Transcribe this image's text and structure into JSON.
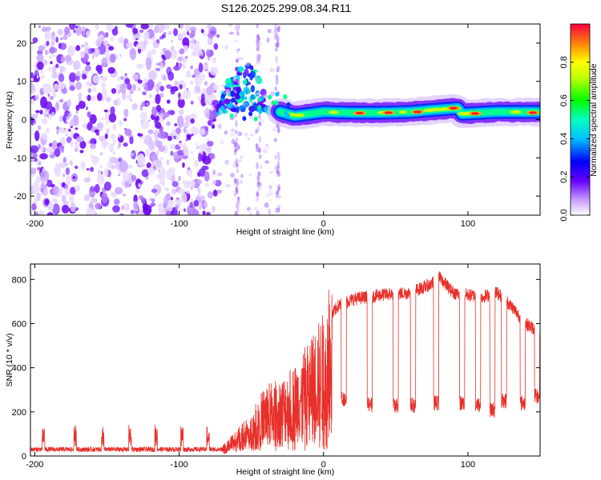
{
  "title": "S126.2025.299.08.34.R11",
  "chart_data": [
    {
      "type": "heatmap",
      "xlabel": "Height of straight line (km)",
      "ylabel": "Frequency (Hz)",
      "xlim": [
        -203,
        150
      ],
      "ylim": [
        -25,
        25
      ],
      "x_ticks": [
        -200,
        -100,
        0,
        100
      ],
      "y_ticks": [
        -20,
        -10,
        0,
        10,
        20
      ],
      "colorbar": {
        "label": "Normalized spectral amplitude",
        "range": [
          0,
          1
        ],
        "ticks": [
          0.0,
          0.2,
          0.4,
          0.6,
          0.8
        ]
      },
      "features": {
        "noise_region_km": [
          -203,
          -73
        ],
        "noise_columns_km": [
          -60,
          -45,
          -32
        ],
        "burst_region_km": [
          -73,
          -30
        ],
        "burst_freq_peak_hz": 14,
        "carrier_track": [
          {
            "x": -30,
            "f": 2.0
          },
          {
            "x": -20,
            "f": 1.0
          },
          {
            "x": -10,
            "f": 1.5
          },
          {
            "x": 0,
            "f": 2.0
          },
          {
            "x": 20,
            "f": 1.8
          },
          {
            "x": 40,
            "f": 1.8
          },
          {
            "x": 60,
            "f": 2.0
          },
          {
            "x": 75,
            "f": 2.5
          },
          {
            "x": 93,
            "f": 3.0
          },
          {
            "x": 96,
            "f": 1.5
          },
          {
            "x": 120,
            "f": 2.0
          },
          {
            "x": 150,
            "f": 2.0
          }
        ],
        "carrier_hot_spots": [
          {
            "x": 25,
            "f": 1.7
          },
          {
            "x": 45,
            "f": 1.8
          },
          {
            "x": 65,
            "f": 2.0
          },
          {
            "x": 90,
            "f": 3.0
          },
          {
            "x": 105,
            "f": 1.6
          },
          {
            "x": 145,
            "f": 1.8
          }
        ]
      }
    },
    {
      "type": "line",
      "xlabel": "Height of straight line (km)",
      "ylabel": "SNR (10 * v/v)",
      "xlim": [
        -203,
        150
      ],
      "ylim": [
        0,
        870
      ],
      "x_ticks": [
        -200,
        -100,
        0,
        100
      ],
      "y_ticks": [
        0,
        200,
        400,
        600,
        800
      ],
      "color": "#e8302a",
      "baseline_segment": {
        "x_range": [
          -203,
          -70
        ],
        "level": 30
      },
      "dips_upper": [
        -194,
        -172,
        -153,
        -134,
        -116,
        -98,
        -80,
        -60,
        -45
      ],
      "dips_upper_height": 130,
      "rise_points": [
        {
          "x": -70,
          "y": 40
        },
        {
          "x": -50,
          "y": 180
        },
        {
          "x": -40,
          "y": 300
        },
        {
          "x": -30,
          "y": 320
        },
        {
          "x": -20,
          "y": 380
        },
        {
          "x": -10,
          "y": 480
        },
        {
          "x": 0,
          "y": 600
        },
        {
          "x": 10,
          "y": 700
        },
        {
          "x": 20,
          "y": 730
        },
        {
          "x": 40,
          "y": 750
        },
        {
          "x": 60,
          "y": 760
        },
        {
          "x": 75,
          "y": 800
        },
        {
          "x": 80,
          "y": 830
        },
        {
          "x": 90,
          "y": 760
        },
        {
          "x": 100,
          "y": 750
        },
        {
          "x": 110,
          "y": 740
        },
        {
          "x": 120,
          "y": 760
        },
        {
          "x": 130,
          "y": 700
        },
        {
          "x": 140,
          "y": 620
        },
        {
          "x": 150,
          "y": 580
        }
      ],
      "deep_dips": [
        {
          "x": 14,
          "depth": 260
        },
        {
          "x": 32,
          "depth": 230
        },
        {
          "x": 50,
          "depth": 230
        },
        {
          "x": 62,
          "depth": 230
        },
        {
          "x": 78,
          "depth": 240
        },
        {
          "x": 96,
          "depth": 240
        },
        {
          "x": 107,
          "depth": 230
        },
        {
          "x": 117,
          "depth": 210
        },
        {
          "x": 125,
          "depth": 250
        },
        {
          "x": 138,
          "depth": 240
        },
        {
          "x": 148,
          "depth": 270
        }
      ]
    }
  ]
}
